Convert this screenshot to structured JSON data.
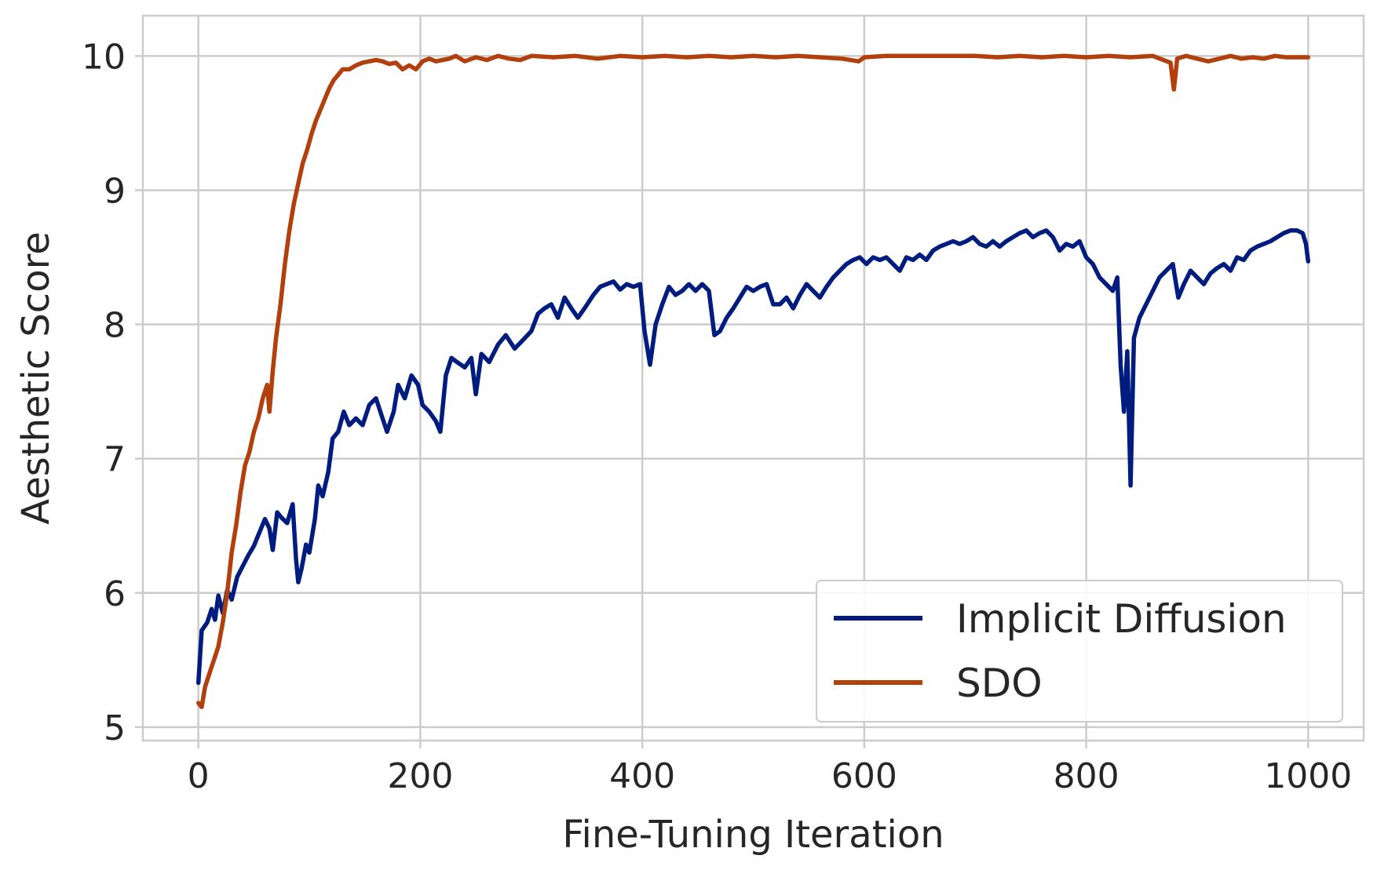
{
  "chart_data": {
    "type": "line",
    "title": "",
    "xlabel": "Fine-Tuning Iteration",
    "ylabel": "Aesthetic Score",
    "xlim": [
      -50,
      1050
    ],
    "ylim": [
      4.9,
      10.3
    ],
    "xticks": [
      0,
      200,
      400,
      600,
      800,
      1000
    ],
    "yticks": [
      5,
      6,
      7,
      8,
      9,
      10
    ],
    "xtick_labels": [
      "0",
      "200",
      "400",
      "600",
      "800",
      "1000"
    ],
    "ytick_labels": [
      "5",
      "6",
      "7",
      "8",
      "9",
      "10"
    ],
    "grid": true,
    "legend_position": "lower-right",
    "series": [
      {
        "name": "Implicit Diffusion",
        "color": "#001c7f",
        "points": [
          [
            0,
            5.33
          ],
          [
            3,
            5.72
          ],
          [
            8,
            5.78
          ],
          [
            12,
            5.88
          ],
          [
            15,
            5.8
          ],
          [
            18,
            5.98
          ],
          [
            22,
            5.85
          ],
          [
            26,
            6.02
          ],
          [
            30,
            5.95
          ],
          [
            35,
            6.12
          ],
          [
            40,
            6.2
          ],
          [
            45,
            6.28
          ],
          [
            50,
            6.35
          ],
          [
            55,
            6.45
          ],
          [
            60,
            6.55
          ],
          [
            64,
            6.48
          ],
          [
            67,
            6.32
          ],
          [
            71,
            6.6
          ],
          [
            75,
            6.56
          ],
          [
            80,
            6.52
          ],
          [
            85,
            6.66
          ],
          [
            88,
            6.25
          ],
          [
            90,
            6.08
          ],
          [
            93,
            6.18
          ],
          [
            97,
            6.36
          ],
          [
            100,
            6.3
          ],
          [
            105,
            6.55
          ],
          [
            108,
            6.8
          ],
          [
            112,
            6.72
          ],
          [
            117,
            6.9
          ],
          [
            121,
            7.15
          ],
          [
            126,
            7.2
          ],
          [
            131,
            7.35
          ],
          [
            136,
            7.25
          ],
          [
            142,
            7.3
          ],
          [
            148,
            7.25
          ],
          [
            154,
            7.4
          ],
          [
            160,
            7.45
          ],
          [
            166,
            7.3
          ],
          [
            170,
            7.2
          ],
          [
            176,
            7.35
          ],
          [
            180,
            7.55
          ],
          [
            186,
            7.45
          ],
          [
            192,
            7.62
          ],
          [
            198,
            7.55
          ],
          [
            202,
            7.4
          ],
          [
            208,
            7.35
          ],
          [
            214,
            7.28
          ],
          [
            218,
            7.2
          ],
          [
            223,
            7.62
          ],
          [
            228,
            7.75
          ],
          [
            233,
            7.72
          ],
          [
            240,
            7.68
          ],
          [
            246,
            7.75
          ],
          [
            250,
            7.48
          ],
          [
            255,
            7.78
          ],
          [
            262,
            7.72
          ],
          [
            270,
            7.85
          ],
          [
            277,
            7.92
          ],
          [
            285,
            7.82
          ],
          [
            292,
            7.88
          ],
          [
            300,
            7.95
          ],
          [
            306,
            8.08
          ],
          [
            312,
            8.12
          ],
          [
            318,
            8.15
          ],
          [
            324,
            8.05
          ],
          [
            330,
            8.2
          ],
          [
            336,
            8.12
          ],
          [
            342,
            8.05
          ],
          [
            348,
            8.12
          ],
          [
            356,
            8.22
          ],
          [
            362,
            8.28
          ],
          [
            368,
            8.3
          ],
          [
            374,
            8.32
          ],
          [
            380,
            8.26
          ],
          [
            386,
            8.3
          ],
          [
            392,
            8.28
          ],
          [
            398,
            8.3
          ],
          [
            402,
            7.95
          ],
          [
            407,
            7.7
          ],
          [
            412,
            8.0
          ],
          [
            418,
            8.15
          ],
          [
            424,
            8.28
          ],
          [
            430,
            8.22
          ],
          [
            436,
            8.25
          ],
          [
            442,
            8.3
          ],
          [
            448,
            8.25
          ],
          [
            454,
            8.3
          ],
          [
            460,
            8.25
          ],
          [
            465,
            7.92
          ],
          [
            470,
            7.95
          ],
          [
            476,
            8.05
          ],
          [
            482,
            8.12
          ],
          [
            488,
            8.2
          ],
          [
            494,
            8.28
          ],
          [
            500,
            8.25
          ],
          [
            506,
            8.28
          ],
          [
            512,
            8.3
          ],
          [
            518,
            8.15
          ],
          [
            524,
            8.15
          ],
          [
            530,
            8.2
          ],
          [
            536,
            8.12
          ],
          [
            542,
            8.22
          ],
          [
            548,
            8.3
          ],
          [
            554,
            8.25
          ],
          [
            560,
            8.2
          ],
          [
            566,
            8.28
          ],
          [
            572,
            8.35
          ],
          [
            578,
            8.4
          ],
          [
            584,
            8.45
          ],
          [
            590,
            8.48
          ],
          [
            596,
            8.5
          ],
          [
            602,
            8.45
          ],
          [
            608,
            8.5
          ],
          [
            614,
            8.48
          ],
          [
            620,
            8.5
          ],
          [
            626,
            8.45
          ],
          [
            632,
            8.4
          ],
          [
            638,
            8.5
          ],
          [
            644,
            8.48
          ],
          [
            650,
            8.52
          ],
          [
            656,
            8.48
          ],
          [
            662,
            8.55
          ],
          [
            668,
            8.58
          ],
          [
            674,
            8.6
          ],
          [
            680,
            8.62
          ],
          [
            686,
            8.6
          ],
          [
            692,
            8.62
          ],
          [
            698,
            8.65
          ],
          [
            704,
            8.6
          ],
          [
            710,
            8.58
          ],
          [
            716,
            8.62
          ],
          [
            722,
            8.58
          ],
          [
            728,
            8.62
          ],
          [
            734,
            8.65
          ],
          [
            740,
            8.68
          ],
          [
            746,
            8.7
          ],
          [
            752,
            8.65
          ],
          [
            758,
            8.68
          ],
          [
            764,
            8.7
          ],
          [
            770,
            8.65
          ],
          [
            776,
            8.55
          ],
          [
            782,
            8.6
          ],
          [
            788,
            8.58
          ],
          [
            794,
            8.62
          ],
          [
            800,
            8.5
          ],
          [
            806,
            8.45
          ],
          [
            812,
            8.35
          ],
          [
            818,
            8.3
          ],
          [
            824,
            8.25
          ],
          [
            828,
            8.35
          ],
          [
            831,
            7.7
          ],
          [
            834,
            7.35
          ],
          [
            837,
            7.8
          ],
          [
            840,
            6.8
          ],
          [
            843,
            7.9
          ],
          [
            848,
            8.05
          ],
          [
            854,
            8.15
          ],
          [
            860,
            8.25
          ],
          [
            866,
            8.35
          ],
          [
            872,
            8.4
          ],
          [
            878,
            8.45
          ],
          [
            883,
            8.2
          ],
          [
            888,
            8.3
          ],
          [
            894,
            8.4
          ],
          [
            900,
            8.35
          ],
          [
            906,
            8.3
          ],
          [
            912,
            8.38
          ],
          [
            918,
            8.42
          ],
          [
            924,
            8.45
          ],
          [
            930,
            8.4
          ],
          [
            936,
            8.5
          ],
          [
            942,
            8.48
          ],
          [
            948,
            8.55
          ],
          [
            954,
            8.58
          ],
          [
            960,
            8.6
          ],
          [
            966,
            8.62
          ],
          [
            972,
            8.65
          ],
          [
            978,
            8.68
          ],
          [
            984,
            8.7
          ],
          [
            990,
            8.7
          ],
          [
            995,
            8.68
          ],
          [
            998,
            8.6
          ],
          [
            1000,
            8.47
          ]
        ]
      },
      {
        "name": "SDO",
        "color": "#b1400d",
        "points": [
          [
            0,
            5.18
          ],
          [
            3,
            5.15
          ],
          [
            6,
            5.3
          ],
          [
            10,
            5.4
          ],
          [
            14,
            5.5
          ],
          [
            18,
            5.6
          ],
          [
            22,
            5.78
          ],
          [
            26,
            6.0
          ],
          [
            30,
            6.3
          ],
          [
            34,
            6.5
          ],
          [
            38,
            6.75
          ],
          [
            42,
            6.95
          ],
          [
            46,
            7.05
          ],
          [
            50,
            7.2
          ],
          [
            54,
            7.3
          ],
          [
            58,
            7.45
          ],
          [
            62,
            7.55
          ],
          [
            64,
            7.35
          ],
          [
            67,
            7.65
          ],
          [
            70,
            7.9
          ],
          [
            74,
            8.15
          ],
          [
            78,
            8.45
          ],
          [
            82,
            8.7
          ],
          [
            86,
            8.9
          ],
          [
            90,
            9.05
          ],
          [
            94,
            9.2
          ],
          [
            98,
            9.3
          ],
          [
            102,
            9.42
          ],
          [
            106,
            9.52
          ],
          [
            110,
            9.6
          ],
          [
            114,
            9.68
          ],
          [
            118,
            9.76
          ],
          [
            122,
            9.82
          ],
          [
            126,
            9.86
          ],
          [
            130,
            9.9
          ],
          [
            136,
            9.9
          ],
          [
            142,
            9.93
          ],
          [
            148,
            9.95
          ],
          [
            154,
            9.96
          ],
          [
            160,
            9.97
          ],
          [
            166,
            9.96
          ],
          [
            172,
            9.94
          ],
          [
            178,
            9.95
          ],
          [
            184,
            9.9
          ],
          [
            190,
            9.93
          ],
          [
            196,
            9.9
          ],
          [
            202,
            9.96
          ],
          [
            208,
            9.98
          ],
          [
            214,
            9.96
          ],
          [
            220,
            9.97
          ],
          [
            226,
            9.98
          ],
          [
            232,
            10.0
          ],
          [
            240,
            9.96
          ],
          [
            250,
            9.99
          ],
          [
            260,
            9.97
          ],
          [
            270,
            10.0
          ],
          [
            280,
            9.98
          ],
          [
            290,
            9.97
          ],
          [
            300,
            10.0
          ],
          [
            320,
            9.99
          ],
          [
            340,
            10.0
          ],
          [
            360,
            9.98
          ],
          [
            380,
            10.0
          ],
          [
            400,
            9.99
          ],
          [
            420,
            10.0
          ],
          [
            440,
            9.99
          ],
          [
            460,
            10.0
          ],
          [
            480,
            9.99
          ],
          [
            500,
            10.0
          ],
          [
            520,
            9.99
          ],
          [
            540,
            10.0
          ],
          [
            560,
            9.99
          ],
          [
            580,
            9.98
          ],
          [
            595,
            9.96
          ],
          [
            600,
            9.99
          ],
          [
            620,
            10.0
          ],
          [
            640,
            10.0
          ],
          [
            660,
            10.0
          ],
          [
            680,
            10.0
          ],
          [
            700,
            10.0
          ],
          [
            720,
            9.99
          ],
          [
            740,
            10.0
          ],
          [
            760,
            9.99
          ],
          [
            780,
            10.0
          ],
          [
            800,
            9.99
          ],
          [
            820,
            10.0
          ],
          [
            840,
            9.99
          ],
          [
            860,
            10.0
          ],
          [
            876,
            9.95
          ],
          [
            879,
            9.75
          ],
          [
            882,
            9.98
          ],
          [
            890,
            10.0
          ],
          [
            900,
            9.98
          ],
          [
            910,
            9.96
          ],
          [
            920,
            9.98
          ],
          [
            930,
            10.0
          ],
          [
            940,
            9.98
          ],
          [
            950,
            9.99
          ],
          [
            960,
            9.98
          ],
          [
            970,
            10.0
          ],
          [
            980,
            9.99
          ],
          [
            990,
            9.99
          ],
          [
            1000,
            9.99
          ]
        ]
      }
    ]
  }
}
